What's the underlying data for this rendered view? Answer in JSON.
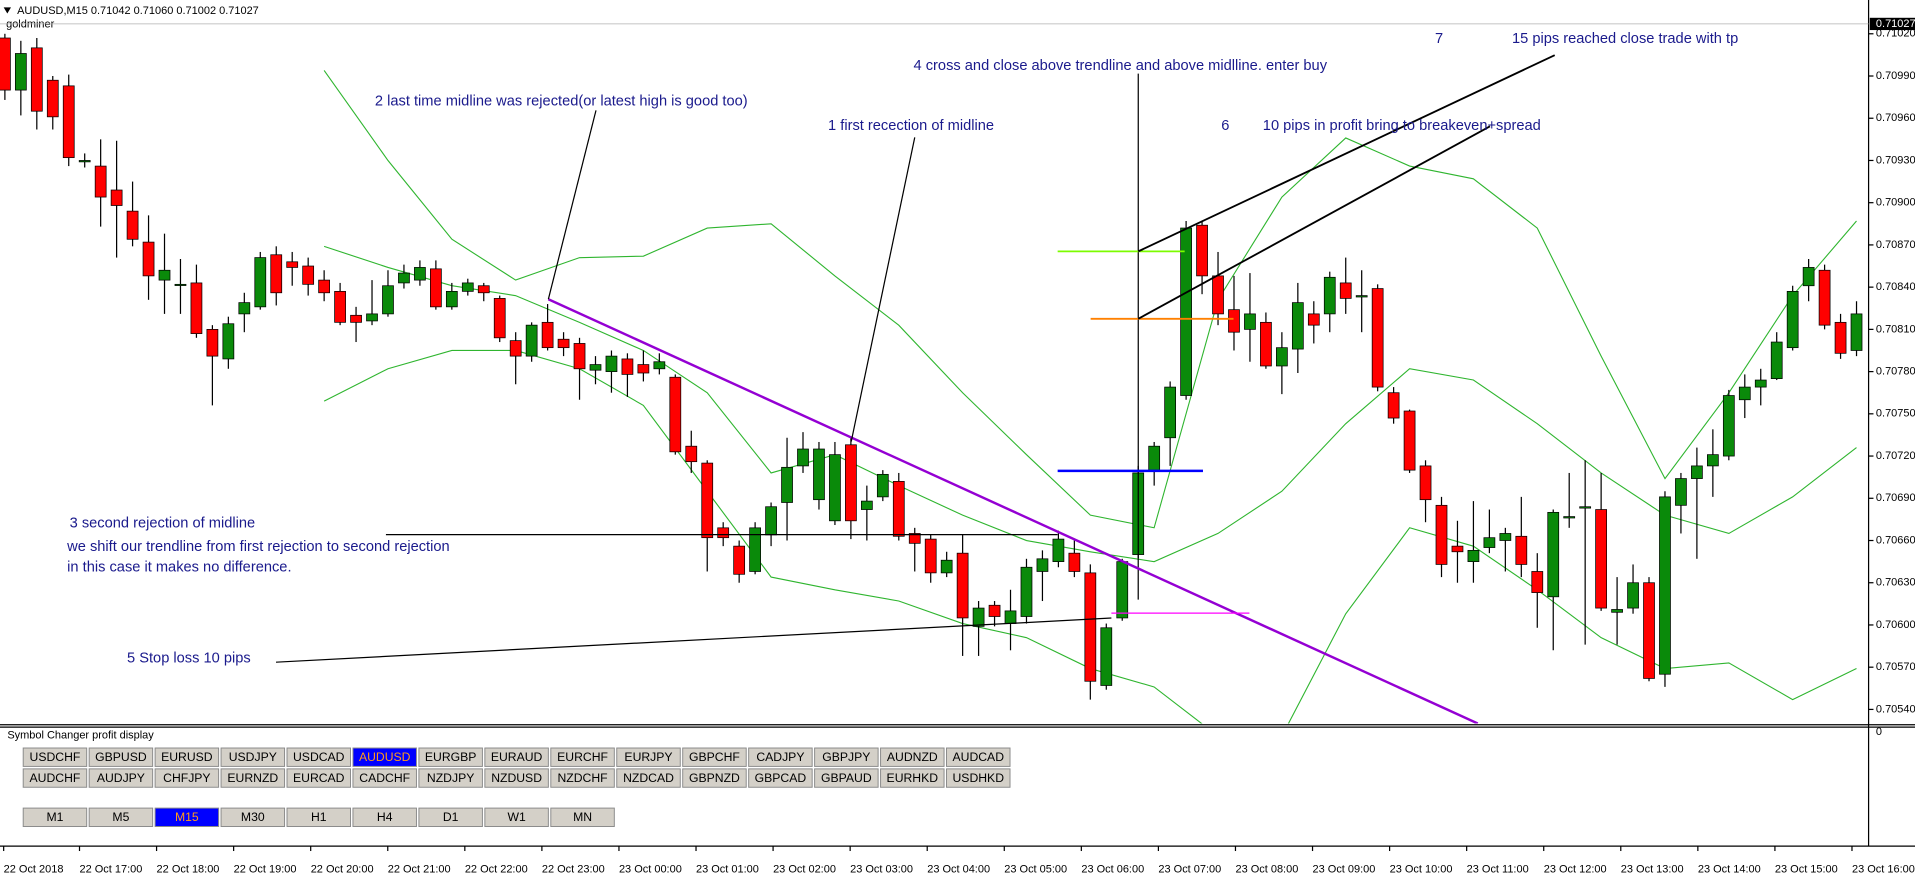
{
  "header": {
    "symbol_line": "AUDUSD,M15  0.71042 0.71060 0.71002 0.71027",
    "indicator": "goldminer"
  },
  "chart_data": {
    "type": "candlestick",
    "bull_color": "#0a8a0a",
    "bear_color": "#ff0000",
    "ylim": [
      0.7053,
      0.71044
    ],
    "yticks": [
      {
        "value": 0.7102,
        "label": "0.71020"
      },
      {
        "value": 0.7099,
        "label": "0.70990"
      },
      {
        "value": 0.7096,
        "label": "0.70960"
      },
      {
        "value": 0.7093,
        "label": "0.70930"
      },
      {
        "value": 0.709,
        "label": "0.70900"
      },
      {
        "value": 0.7087,
        "label": "0.70870"
      },
      {
        "value": 0.7084,
        "label": "0.70840"
      },
      {
        "value": 0.7081,
        "label": "0.70810"
      },
      {
        "value": 0.7078,
        "label": "0.70780"
      },
      {
        "value": 0.7075,
        "label": "0.70750"
      },
      {
        "value": 0.7072,
        "label": "0.70720"
      },
      {
        "value": 0.7069,
        "label": "0.70690"
      },
      {
        "value": 0.7066,
        "label": "0.70660"
      },
      {
        "value": 0.7063,
        "label": "0.70630"
      },
      {
        "value": 0.706,
        "label": "0.70600"
      },
      {
        "value": 0.7057,
        "label": "0.70570"
      },
      {
        "value": 0.7054,
        "label": "0.70540"
      }
    ],
    "bid": {
      "value": 0.71027,
      "label": "0.71027"
    },
    "x_labels": [
      "22 Oct 2018",
      "22 Oct 17:00",
      "22 Oct 18:00",
      "22 Oct 19:00",
      "22 Oct 20:00",
      "22 Oct 21:00",
      "22 Oct 22:00",
      "22 Oct 23:00",
      "23 Oct 00:00",
      "23 Oct 01:00",
      "23 Oct 02:00",
      "23 Oct 03:00",
      "23 Oct 04:00",
      "23 Oct 05:00",
      "23 Oct 06:00",
      "23 Oct 07:00",
      "23 Oct 08:00",
      "23 Oct 09:00",
      "23 Oct 10:00",
      "23 Oct 11:00",
      "23 Oct 12:00",
      "23 Oct 13:00",
      "23 Oct 14:00",
      "23 Oct 15:00",
      "23 Oct 16:00"
    ],
    "open": [
      0.71017,
      0.7098,
      0.7101,
      0.70987,
      0.70983,
      0.70929,
      0.70926,
      0.70909,
      0.70894,
      0.70872,
      0.70845,
      0.70842,
      0.70843,
      0.7081,
      0.70789,
      0.70821,
      0.70826,
      0.70863,
      0.70858,
      0.70855,
      0.70845,
      0.70837,
      0.7082,
      0.70816,
      0.70821,
      0.70843,
      0.70845,
      0.70853,
      0.70826,
      0.70837,
      0.70841,
      0.70832,
      0.70802,
      0.70791,
      0.70815,
      0.70803,
      0.708,
      0.70781,
      0.7078,
      0.70789,
      0.70785,
      0.70782,
      0.70776,
      0.70727,
      0.70715,
      0.70669,
      0.70656,
      0.70638,
      0.70664,
      0.70687,
      0.70713,
      0.70689,
      0.70674,
      0.70728,
      0.70682,
      0.70691,
      0.70702,
      0.70665,
      0.70661,
      0.70637,
      0.70651,
      0.70599,
      0.70614,
      0.70601,
      0.70606,
      0.70638,
      0.70645,
      0.70651,
      0.70637,
      0.70557,
      0.70605,
      0.7065,
      0.7071,
      0.70733,
      0.70763,
      0.70884,
      0.70848,
      0.70824,
      0.7081,
      0.70815,
      0.70784,
      0.70796,
      0.70821,
      0.70821,
      0.70843,
      0.70833,
      0.70839,
      0.70765,
      0.70752,
      0.70713,
      0.70685,
      0.70656,
      0.70645,
      0.70655,
      0.7066,
      0.70663,
      0.70638,
      0.7062,
      0.70676,
      0.70683,
      0.70682,
      0.70609,
      0.70612,
      0.7063,
      0.70565,
      0.70685,
      0.70704,
      0.70713,
      0.7072,
      0.7076,
      0.70769,
      0.70775,
      0.70797,
      0.70841,
      0.70852,
      0.70815,
      0.70795
    ],
    "high": [
      0.7102,
      0.71015,
      0.71017,
      0.7099,
      0.70991,
      0.70935,
      0.70945,
      0.70944,
      0.70915,
      0.70891,
      0.70878,
      0.7086,
      0.70856,
      0.70813,
      0.70819,
      0.70836,
      0.70865,
      0.70869,
      0.70865,
      0.70861,
      0.70852,
      0.70843,
      0.70826,
      0.70845,
      0.70852,
      0.70856,
      0.70859,
      0.70859,
      0.70843,
      0.70846,
      0.70843,
      0.70834,
      0.70808,
      0.70815,
      0.70828,
      0.70808,
      0.70804,
      0.70791,
      0.70795,
      0.70793,
      0.70795,
      0.70793,
      0.70778,
      0.70738,
      0.70717,
      0.70673,
      0.7066,
      0.70673,
      0.70687,
      0.70733,
      0.70737,
      0.7073,
      0.7073,
      0.70734,
      0.70699,
      0.7071,
      0.70708,
      0.70669,
      0.70664,
      0.70652,
      0.70664,
      0.70617,
      0.70617,
      0.70625,
      0.70647,
      0.70653,
      0.70667,
      0.7066,
      0.70643,
      0.70601,
      0.70647,
      0.70713,
      0.7073,
      0.70773,
      0.70887,
      0.70887,
      0.70865,
      0.70848,
      0.7085,
      0.70822,
      0.70808,
      0.70843,
      0.7083,
      0.70851,
      0.70861,
      0.70852,
      0.70842,
      0.70769,
      0.70753,
      0.70717,
      0.70691,
      0.70674,
      0.70688,
      0.70682,
      0.70669,
      0.70691,
      0.70651,
      0.70682,
      0.70708,
      0.70717,
      0.70708,
      0.70634,
      0.70643,
      0.70634,
      0.70695,
      0.70708,
      0.70726,
      0.70739,
      0.70767,
      0.70778,
      0.70782,
      0.70808,
      0.70841,
      0.7086,
      0.70856,
      0.70821,
      0.7083
    ],
    "low": [
      0.70973,
      0.70962,
      0.70952,
      0.70952,
      0.70926,
      0.70925,
      0.70883,
      0.70861,
      0.70869,
      0.70831,
      0.70821,
      0.70821,
      0.70804,
      0.70756,
      0.70782,
      0.70808,
      0.70824,
      0.70827,
      0.70841,
      0.70834,
      0.7083,
      0.70813,
      0.70801,
      0.70813,
      0.70819,
      0.70839,
      0.70841,
      0.70824,
      0.70824,
      0.70834,
      0.7083,
      0.70801,
      0.70771,
      0.70787,
      0.70795,
      0.70791,
      0.7076,
      0.70771,
      0.70765,
      0.70762,
      0.70773,
      0.70778,
      0.70721,
      0.70708,
      0.70638,
      0.70656,
      0.7063,
      0.70636,
      0.70656,
      0.7066,
      0.70708,
      0.70682,
      0.70671,
      0.70661,
      0.7066,
      0.70688,
      0.7066,
      0.70638,
      0.7063,
      0.70634,
      0.70578,
      0.70578,
      0.70599,
      0.70582,
      0.70601,
      0.70617,
      0.70641,
      0.70634,
      0.70547,
      0.70554,
      0.70603,
      0.70618,
      0.70699,
      0.70713,
      0.7076,
      0.70835,
      0.70813,
      0.70795,
      0.70787,
      0.70782,
      0.70764,
      0.70779,
      0.708,
      0.70808,
      0.70821,
      0.70808,
      0.70766,
      0.70743,
      0.70708,
      0.70673,
      0.70634,
      0.7063,
      0.7063,
      0.70651,
      0.70638,
      0.70634,
      0.70598,
      0.70582,
      0.70669,
      0.70586,
      0.7061,
      0.70586,
      0.70608,
      0.7056,
      0.70556,
      0.70665,
      0.70647,
      0.70691,
      0.70717,
      0.70747,
      0.70756,
      0.70774,
      0.70795,
      0.7083,
      0.7081,
      0.70789,
      0.70791
    ],
    "close": [
      0.7098,
      0.71006,
      0.70965,
      0.70961,
      0.70932,
      0.7093,
      0.70904,
      0.70898,
      0.70874,
      0.70848,
      0.70852,
      0.70842,
      0.70807,
      0.70791,
      0.70814,
      0.70829,
      0.70861,
      0.70836,
      0.70854,
      0.70842,
      0.70836,
      0.70815,
      0.70815,
      0.70821,
      0.70841,
      0.7085,
      0.70854,
      0.70826,
      0.70837,
      0.70843,
      0.70836,
      0.70804,
      0.70791,
      0.70813,
      0.70797,
      0.70797,
      0.70782,
      0.70785,
      0.70791,
      0.70778,
      0.70779,
      0.70787,
      0.70723,
      0.70716,
      0.70662,
      0.70662,
      0.70636,
      0.70669,
      0.70684,
      0.70712,
      0.70725,
      0.70725,
      0.70721,
      0.70674,
      0.70688,
      0.70707,
      0.70663,
      0.70658,
      0.70637,
      0.70646,
      0.70605,
      0.70612,
      0.70606,
      0.7061,
      0.70641,
      0.70647,
      0.70661,
      0.70638,
      0.7056,
      0.70598,
      0.70645,
      0.70708,
      0.70727,
      0.70769,
      0.70882,
      0.70848,
      0.70821,
      0.70808,
      0.70821,
      0.70784,
      0.70797,
      0.70829,
      0.70813,
      0.70847,
      0.70832,
      0.70834,
      0.70769,
      0.70747,
      0.7071,
      0.70689,
      0.70643,
      0.70652,
      0.70653,
      0.70662,
      0.70665,
      0.70643,
      0.70623,
      0.7068,
      0.70677,
      0.70684,
      0.70612,
      0.70611,
      0.7063,
      0.70562,
      0.70691,
      0.70704,
      0.70713,
      0.70721,
      0.70763,
      0.70769,
      0.70774,
      0.70801,
      0.70837,
      0.70854,
      0.70813,
      0.70793,
      0.70821
    ],
    "bands": [
      {
        "color": "#2fb52f",
        "x": [
          20,
          24,
          28,
          32,
          36,
          40,
          44,
          48,
          52,
          56,
          60,
          64,
          68,
          72,
          76,
          80,
          84,
          88,
          92,
          96,
          100,
          104,
          108,
          112,
          116
        ],
        "values": [
          0.70994,
          0.7093,
          0.70874,
          0.70845,
          0.70861,
          0.70862,
          0.70882,
          0.70885,
          0.70848,
          0.70813,
          0.70765,
          0.70721,
          0.70678,
          0.70669,
          0.70831,
          0.70904,
          0.70946,
          0.70926,
          0.70917,
          0.70882,
          0.70791,
          0.70704,
          0.70765,
          0.70834,
          0.70887
        ]
      },
      {
        "color": "#2fb52f",
        "x": [
          20,
          24,
          28,
          32,
          36,
          40,
          44,
          48,
          52,
          56,
          60,
          64,
          68,
          72,
          76,
          80,
          84,
          88,
          92,
          96,
          100,
          104,
          108,
          112,
          116
        ],
        "values": [
          0.70869,
          0.70854,
          0.70841,
          0.70834,
          0.70815,
          0.70795,
          0.70765,
          0.70708,
          0.70721,
          0.70699,
          0.70678,
          0.7066,
          0.70652,
          0.70645,
          0.70665,
          0.70695,
          0.70743,
          0.70782,
          0.70774,
          0.70743,
          0.70708,
          0.70678,
          0.70665,
          0.70691,
          0.70726
        ]
      },
      {
        "color": "#2fb52f",
        "x": [
          20,
          24,
          28,
          32,
          36,
          40,
          44,
          48,
          52,
          56,
          60,
          64,
          68,
          72,
          76,
          80,
          84,
          88,
          92,
          96,
          100,
          104,
          108,
          112,
          116
        ],
        "values": [
          0.70759,
          0.70782,
          0.70795,
          0.70795,
          0.70782,
          0.70756,
          0.70695,
          0.70634,
          0.70625,
          0.70617,
          0.70601,
          0.70591,
          0.70569,
          0.70556,
          0.70521,
          0.70521,
          0.70608,
          0.70669,
          0.70656,
          0.70625,
          0.70591,
          0.70569,
          0.70573,
          0.70547,
          0.70569
        ]
      }
    ],
    "annotations": [
      "2  last time midline was rejected(or latest high is good too)",
      "1   first recection of midline",
      "4  cross and close above trendline and above midlline. enter buy",
      "7",
      "15 pips reached close trade with tp",
      "6",
      "10 pips in profit bring to breakeven+spread",
      "3  second rejection of midline",
      "we shift our trendline from first rejection to second rejection",
      "in this case it makes no difference.",
      "5    Stop loss 10 pips"
    ]
  },
  "panel": {
    "title": "Symbol Changer profit display",
    "zero_tick": 0,
    "symbol_buttons": [
      [
        "USDCHF",
        "GBPUSD",
        "EURUSD",
        "USDJPY",
        "USDCAD",
        "AUDUSD",
        "EURGBP",
        "EURAUD",
        "EURCHF",
        "EURJPY",
        "GBPCHF",
        "CADJPY",
        "GBPJPY",
        "AUDNZD",
        "AUDCAD"
      ],
      [
        "AUDCHF",
        "AUDJPY",
        "CHFJPY",
        "EURNZD",
        "EURCAD",
        "CADCHF",
        "NZDJPY",
        "NZDUSD",
        "NZDCHF",
        "NZDCAD",
        "GBPNZD",
        "GBPCAD",
        "GBPAUD",
        "EURHKD",
        "USDHKD"
      ]
    ],
    "timeframe_buttons": [
      "M1",
      "M5",
      "M15",
      "M30",
      "H1",
      "H4",
      "D1",
      "W1",
      "MN"
    ],
    "active_symbol": "AUDUSD",
    "active_timeframe": "M15"
  }
}
